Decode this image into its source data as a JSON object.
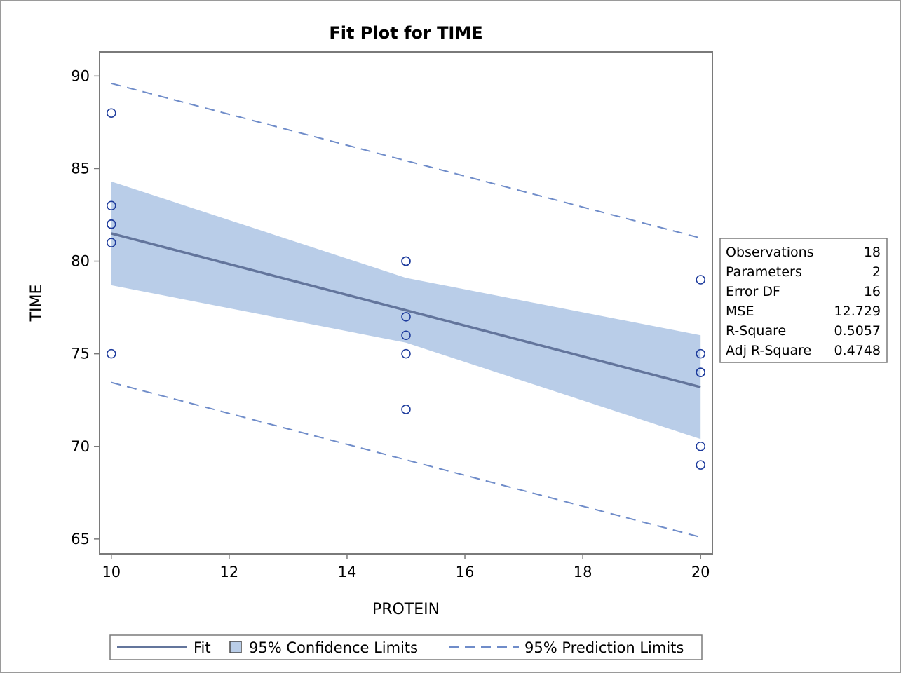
{
  "colors": {
    "band": "#b9cde8",
    "fit": "#63759c",
    "prediction": "#6f8cc9",
    "marker": "#1c3a9c",
    "axis": "#7a7a7a"
  },
  "chart_data": {
    "type": "scatter",
    "title": "Fit Plot for TIME",
    "xlabel": "PROTEIN",
    "ylabel": "TIME",
    "xlim": [
      9.8,
      20.2
    ],
    "ylim": [
      64.2,
      91.3
    ],
    "xticks": [
      10,
      12,
      14,
      16,
      18,
      20
    ],
    "yticks": [
      65,
      70,
      75,
      80,
      85,
      90
    ],
    "points": [
      {
        "x": 10,
        "y": 88
      },
      {
        "x": 10,
        "y": 83
      },
      {
        "x": 10,
        "y": 82
      },
      {
        "x": 10,
        "y": 82
      },
      {
        "x": 10,
        "y": 81
      },
      {
        "x": 10,
        "y": 75
      },
      {
        "x": 15,
        "y": 80
      },
      {
        "x": 15,
        "y": 80
      },
      {
        "x": 15,
        "y": 77
      },
      {
        "x": 15,
        "y": 76
      },
      {
        "x": 15,
        "y": 75
      },
      {
        "x": 15,
        "y": 72
      },
      {
        "x": 20,
        "y": 79
      },
      {
        "x": 20,
        "y": 75
      },
      {
        "x": 20,
        "y": 74
      },
      {
        "x": 20,
        "y": 74
      },
      {
        "x": 20,
        "y": 70
      },
      {
        "x": 20,
        "y": 69
      }
    ],
    "fit": {
      "x": [
        10,
        20
      ],
      "y": [
        81.5,
        73.2
      ]
    },
    "confidence": {
      "x": [
        10,
        15,
        20
      ],
      "lower": [
        78.7,
        75.6,
        70.4
      ],
      "upper": [
        84.3,
        79.1,
        76.0
      ]
    },
    "prediction": {
      "x": [
        10,
        20
      ],
      "lower": [
        73.45,
        65.1
      ],
      "upper": [
        89.6,
        81.25
      ]
    },
    "legend": {
      "placement": "bottom",
      "fit": "Fit",
      "confidence": "95% Confidence Limits",
      "prediction": "95% Prediction Limits"
    },
    "stats": [
      {
        "label": "Observations",
        "value": "18"
      },
      {
        "label": "Parameters",
        "value": "2"
      },
      {
        "label": "Error DF",
        "value": "16"
      },
      {
        "label": "MSE",
        "value": "12.729"
      },
      {
        "label": "R-Square",
        "value": "0.5057"
      },
      {
        "label": "Adj R-Square",
        "value": "0.4748"
      }
    ]
  }
}
